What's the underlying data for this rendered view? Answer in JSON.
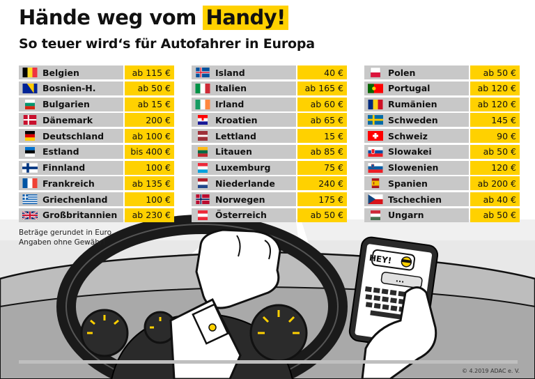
{
  "header": {
    "title_prefix": "Hände weg vom",
    "title_highlight": "Handy!",
    "subtitle": "So teuer wird‘s für Autofahrer in Europa"
  },
  "columns": [
    [
      {
        "country": "Belgien",
        "fine": "ab 115 €",
        "flag": "be"
      },
      {
        "country": "Bosnien-H.",
        "fine": "ab 50 €",
        "flag": "ba"
      },
      {
        "country": "Bulgarien",
        "fine": "ab 15 €",
        "flag": "bg"
      },
      {
        "country": "Dänemark",
        "fine": "200 €",
        "flag": "dk"
      },
      {
        "country": "Deutschland",
        "fine": "ab 100 €",
        "flag": "de"
      },
      {
        "country": "Estland",
        "fine": "bis 400 €",
        "flag": "ee"
      },
      {
        "country": "Finnland",
        "fine": "100 €",
        "flag": "fi"
      },
      {
        "country": "Frankreich",
        "fine": "ab 135 €",
        "flag": "fr"
      },
      {
        "country": "Griechenland",
        "fine": "100 €",
        "flag": "gr"
      },
      {
        "country": "Großbritannien",
        "fine": "ab 230 €",
        "flag": "gb"
      }
    ],
    [
      {
        "country": "Island",
        "fine": "40 €",
        "flag": "is"
      },
      {
        "country": "Italien",
        "fine": "ab 165 €",
        "flag": "it"
      },
      {
        "country": "Irland",
        "fine": "ab 60 €",
        "flag": "ie"
      },
      {
        "country": "Kroatien",
        "fine": "ab 65 €",
        "flag": "hr"
      },
      {
        "country": "Lettland",
        "fine": "15 €",
        "flag": "lv"
      },
      {
        "country": "Litauen",
        "fine": "ab 85 €",
        "flag": "lt"
      },
      {
        "country": "Luxemburg",
        "fine": "75 €",
        "flag": "lu"
      },
      {
        "country": "Niederlande",
        "fine": "240 €",
        "flag": "nl"
      },
      {
        "country": "Norwegen",
        "fine": "175 €",
        "flag": "no"
      },
      {
        "country": "Österreich",
        "fine": "ab 50 €",
        "flag": "at"
      }
    ],
    [
      {
        "country": "Polen",
        "fine": "ab 50 €",
        "flag": "pl"
      },
      {
        "country": "Portugal",
        "fine": "ab 120 €",
        "flag": "pt"
      },
      {
        "country": "Rumänien",
        "fine": "ab 120 €",
        "flag": "ro"
      },
      {
        "country": "Schweden",
        "fine": "145 €",
        "flag": "se"
      },
      {
        "country": "Schweiz",
        "fine": "90 €",
        "flag": "ch"
      },
      {
        "country": "Slowakei",
        "fine": "ab 50 €",
        "flag": "sk"
      },
      {
        "country": "Slowenien",
        "fine": "120 €",
        "flag": "si"
      },
      {
        "country": "Spanien",
        "fine": "ab 200 €",
        "flag": "es"
      },
      {
        "country": "Tschechien",
        "fine": "ab 40 €",
        "flag": "cz"
      },
      {
        "country": "Ungarn",
        "fine": "ab 50 €",
        "flag": "hu"
      }
    ]
  ],
  "notes": {
    "line1": "Beträge gerundet in Euro",
    "line2": "Angaben ohne Gewähr!"
  },
  "phone_message": "HEY!",
  "typing_indicator": "...",
  "copyright": "© 4.2019 ADAC e. V.",
  "colors": {
    "accent": "#ffd100",
    "row_gray": "#c8c8c8",
    "road": "#e6e6e6"
  }
}
